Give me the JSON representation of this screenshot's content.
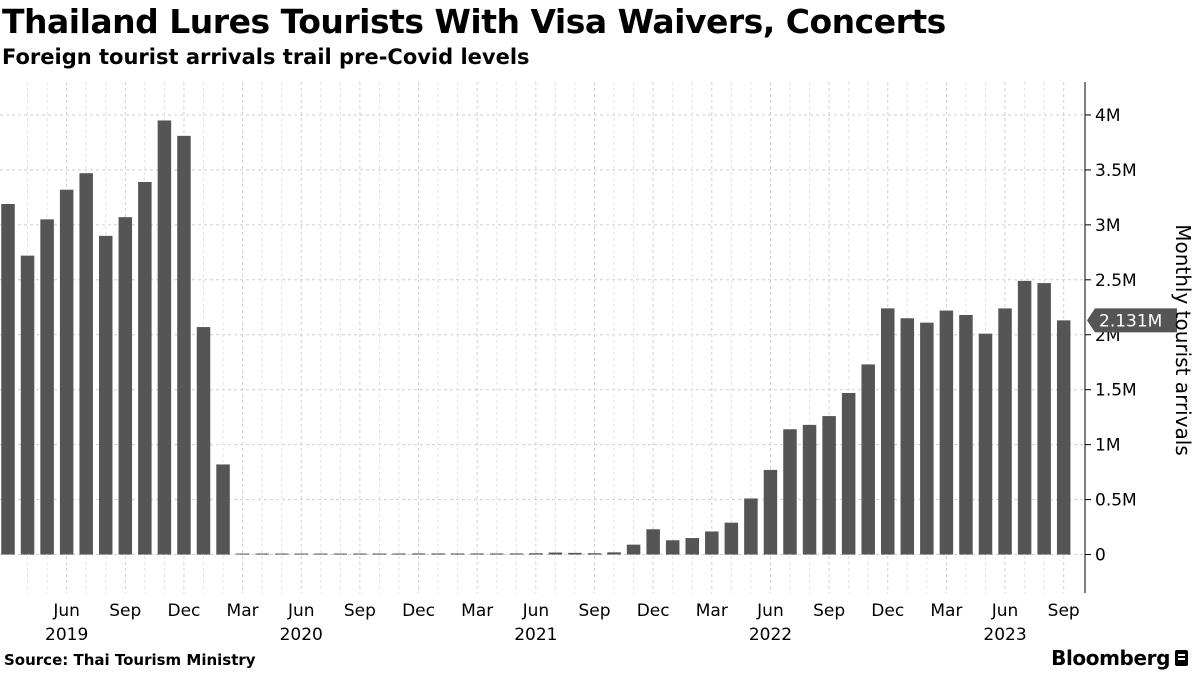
{
  "header": {
    "title": "Thailand Lures Tourists With Visa Waivers, Concerts",
    "subtitle": "Foreign tourist arrivals trail pre-Covid levels"
  },
  "footer": {
    "source": "Source: Thai Tourism Ministry",
    "brand": "Bloomberg"
  },
  "chart_data": {
    "type": "bar",
    "title": "Thailand Lures Tourists With Visa Waivers, Concerts",
    "subtitle": "Foreign tourist arrivals trail pre-Covid levels",
    "ylabel": "Monthly tourist arrivals",
    "ylim": [
      -0.35,
      4.3
    ],
    "y_axis_position": "right",
    "grid": true,
    "bar_color": "#555555",
    "categories": [
      "2019-03",
      "2019-04",
      "2019-05",
      "2019-06",
      "2019-07",
      "2019-08",
      "2019-09",
      "2019-10",
      "2019-11",
      "2019-12",
      "2020-01",
      "2020-02",
      "2020-03",
      "2020-04",
      "2020-05",
      "2020-06",
      "2020-07",
      "2020-08",
      "2020-09",
      "2020-10",
      "2020-11",
      "2020-12",
      "2021-01",
      "2021-02",
      "2021-03",
      "2021-04",
      "2021-05",
      "2021-06",
      "2021-07",
      "2021-08",
      "2021-09",
      "2021-10",
      "2021-11",
      "2021-12",
      "2022-01",
      "2022-02",
      "2022-03",
      "2022-04",
      "2022-05",
      "2022-06",
      "2022-07",
      "2022-08",
      "2022-09",
      "2022-10",
      "2022-11",
      "2022-12",
      "2023-01",
      "2023-02",
      "2023-03",
      "2023-04",
      "2023-05",
      "2023-06",
      "2023-07",
      "2023-08",
      "2023-09"
    ],
    "values": [
      3.19,
      2.72,
      3.05,
      3.32,
      3.47,
      2.9,
      3.07,
      3.39,
      3.95,
      3.81,
      2.07,
      0.82,
      0.005,
      0.005,
      0.005,
      0.005,
      0.005,
      0.005,
      0.006,
      0.008,
      0.009,
      0.01,
      0.01,
      0.01,
      0.01,
      0.01,
      0.01,
      0.012,
      0.018,
      0.015,
      0.012,
      0.02,
      0.09,
      0.23,
      0.13,
      0.15,
      0.21,
      0.29,
      0.51,
      0.77,
      1.14,
      1.18,
      1.26,
      1.47,
      1.73,
      2.24,
      2.15,
      2.11,
      2.22,
      2.18,
      2.01,
      2.24,
      2.49,
      2.47,
      2.131
    ],
    "y_ticks": [
      {
        "value": 0,
        "label": "0"
      },
      {
        "value": 0.5,
        "label": "0.5M"
      },
      {
        "value": 1,
        "label": "1M"
      },
      {
        "value": 1.5,
        "label": "1.5M"
      },
      {
        "value": 2,
        "label": "2M"
      },
      {
        "value": 2.5,
        "label": "2.5M"
      },
      {
        "value": 3,
        "label": "3M"
      },
      {
        "value": 3.5,
        "label": "3.5M"
      },
      {
        "value": 4,
        "label": "4M"
      }
    ],
    "x_ticks": [
      {
        "index": 3,
        "label": "Jun"
      },
      {
        "index": 6,
        "label": "Sep"
      },
      {
        "index": 9,
        "label": "Dec"
      },
      {
        "index": 12,
        "label": "Mar"
      },
      {
        "index": 15,
        "label": "Jun"
      },
      {
        "index": 18,
        "label": "Sep"
      },
      {
        "index": 21,
        "label": "Dec"
      },
      {
        "index": 24,
        "label": "Mar"
      },
      {
        "index": 27,
        "label": "Jun"
      },
      {
        "index": 30,
        "label": "Sep"
      },
      {
        "index": 33,
        "label": "Dec"
      },
      {
        "index": 36,
        "label": "Mar"
      },
      {
        "index": 39,
        "label": "Jun"
      },
      {
        "index": 42,
        "label": "Sep"
      },
      {
        "index": 45,
        "label": "Dec"
      },
      {
        "index": 48,
        "label": "Mar"
      },
      {
        "index": 51,
        "label": "Jun"
      },
      {
        "index": 54,
        "label": "Sep"
      }
    ],
    "year_labels": [
      {
        "index": 3,
        "label": "2019"
      },
      {
        "index": 15,
        "label": "2020"
      },
      {
        "index": 27,
        "label": "2021"
      },
      {
        "index": 39,
        "label": "2022"
      },
      {
        "index": 51,
        "label": "2023"
      }
    ],
    "last_value_callout": {
      "value": 2.131,
      "label": "2.131M"
    }
  }
}
